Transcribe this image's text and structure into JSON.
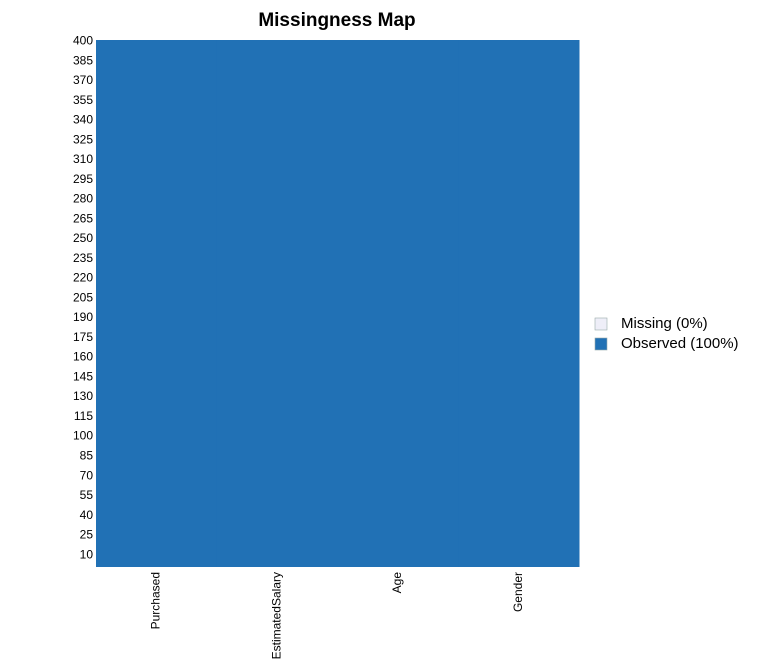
{
  "chart_data": {
    "type": "missmap",
    "title": "Missingness Map",
    "categories": [
      "Purchased",
      "EstimatedSalary",
      "Age",
      "Gender"
    ],
    "series": [
      {
        "name": "Missing (0%)",
        "color": "#eeeef8",
        "values": [
          0,
          0,
          0,
          0
        ]
      },
      {
        "name": "Observed (100%)",
        "color": "#2171b5",
        "values": [
          400,
          400,
          400,
          400
        ]
      }
    ],
    "ylim": [
      1,
      401
    ],
    "yticks": [
      400,
      385,
      370,
      355,
      340,
      325,
      310,
      295,
      280,
      265,
      250,
      235,
      220,
      205,
      190,
      175,
      160,
      145,
      130,
      115,
      100,
      85,
      70,
      55,
      40,
      25,
      10
    ],
    "legend": "right"
  }
}
